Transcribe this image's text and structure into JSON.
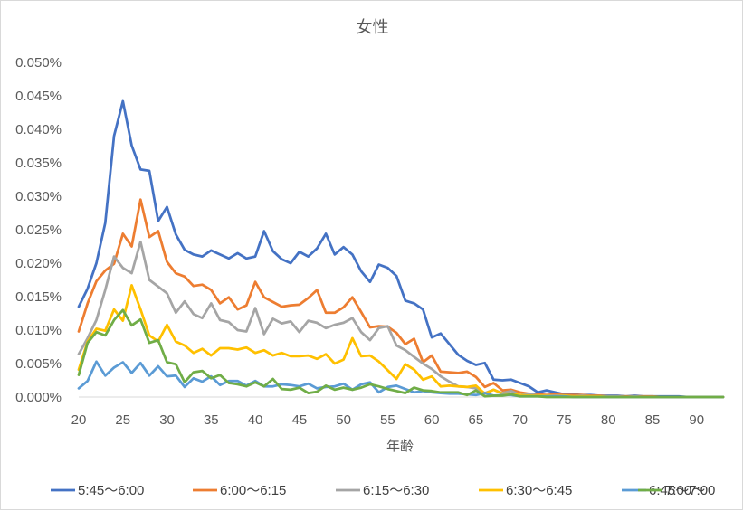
{
  "chart_data": {
    "type": "line",
    "title": "女性",
    "xlabel": "年齢",
    "ylabel": "",
    "xlim": [
      20,
      93
    ],
    "ylim": [
      0,
      0.0005
    ],
    "grid": false,
    "legend_position": "bottom",
    "x_ticks": [
      20,
      25,
      30,
      35,
      40,
      45,
      50,
      55,
      60,
      65,
      70,
      75,
      80,
      85,
      90
    ],
    "x_tick_labels": [
      "20",
      "25",
      "30",
      "35",
      "40",
      "45",
      "50",
      "55",
      "60",
      "65",
      "70",
      "75",
      "80",
      "85",
      "90"
    ],
    "y_ticks": [
      0,
      5e-05,
      0.0001,
      0.00015,
      0.0002,
      0.00025,
      0.0003,
      0.00035,
      0.0004,
      0.00045,
      0.0005
    ],
    "y_tick_labels": [
      "0.000%",
      "0.005%",
      "0.010%",
      "0.015%",
      "0.020%",
      "0.025%",
      "0.030%",
      "0.035%",
      "0.040%",
      "0.045%",
      "0.050%"
    ],
    "x": [
      20,
      21,
      22,
      23,
      24,
      25,
      26,
      27,
      28,
      29,
      30,
      31,
      32,
      33,
      34,
      35,
      36,
      37,
      38,
      39,
      40,
      41,
      42,
      43,
      44,
      45,
      46,
      47,
      48,
      49,
      50,
      51,
      52,
      53,
      54,
      55,
      56,
      57,
      58,
      59,
      60,
      61,
      62,
      63,
      64,
      65,
      66,
      67,
      68,
      69,
      70,
      71,
      72,
      73,
      74,
      75,
      76,
      77,
      78,
      79,
      80,
      81,
      82,
      83,
      84,
      85,
      86,
      87,
      88,
      89,
      90,
      91,
      92,
      93
    ],
    "series": [
      {
        "name": "5:45～6:00",
        "color": "#4472C4",
        "values": [
          0.000135,
          0.000162,
          0.0002,
          0.00026,
          0.00039,
          0.000442,
          0.000376,
          0.00034,
          0.000338,
          0.000263,
          0.000284,
          0.000243,
          0.00022,
          0.000213,
          0.00021,
          0.000219,
          0.000213,
          0.000207,
          0.000215,
          0.000207,
          0.00021,
          0.000248,
          0.000218,
          0.000206,
          0.0002,
          0.000217,
          0.00021,
          0.000222,
          0.000244,
          0.000213,
          0.000224,
          0.000213,
          0.000188,
          0.000172,
          0.000198,
          0.000193,
          0.000181,
          0.000144,
          0.00014,
          0.000131,
          8.9e-05,
          9.5e-05,
          7.9e-05,
          6.3e-05,
          5.4e-05,
          4.8e-05,
          5.1e-05,
          2.6e-05,
          2.5e-05,
          2.6e-05,
          2.1e-05,
          1.6e-05,
          7e-06,
          1e-05,
          7e-06,
          4e-06,
          4e-06,
          3e-06,
          3e-06,
          2e-06,
          2e-06,
          2e-06,
          1e-06,
          2e-06,
          1e-06,
          1e-06,
          1e-06,
          1e-06,
          1e-06,
          0.0,
          0.0,
          0.0,
          0.0,
          0.0
        ]
      },
      {
        "name": "6:00～6:15",
        "color": "#ED7D31",
        "values": [
          9.8e-05,
          0.00014,
          0.000173,
          0.000189,
          0.000199,
          0.000244,
          0.000225,
          0.000295,
          0.000239,
          0.000248,
          0.000202,
          0.000185,
          0.00018,
          0.000166,
          0.000168,
          0.00016,
          0.00014,
          0.000149,
          0.000131,
          0.000137,
          0.000172,
          0.000149,
          0.000142,
          0.000135,
          0.000137,
          0.000138,
          0.000148,
          0.00016,
          0.000126,
          0.000126,
          0.000134,
          0.000149,
          0.000127,
          0.000104,
          0.000106,
          0.000105,
          9.6e-05,
          7.9e-05,
          8.7e-05,
          5.2e-05,
          6.2e-05,
          3.8e-05,
          3.7e-05,
          3.6e-05,
          3.8e-05,
          3e-05,
          1.5e-05,
          2.1e-05,
          1e-05,
          1.1e-05,
          7e-06,
          5e-06,
          4e-06,
          3e-06,
          4e-06,
          3e-06,
          3e-06,
          3e-06,
          2e-06,
          2e-06,
          1e-06,
          1e-06,
          1e-06,
          1e-06,
          1e-06,
          1e-06,
          0.0,
          0.0,
          0.0,
          0.0,
          0.0,
          0.0,
          0.0,
          0.0
        ]
      },
      {
        "name": "6:15～6:30",
        "color": "#A5A5A5",
        "values": [
          6.4e-05,
          8.8e-05,
          0.000115,
          0.00016,
          0.00021,
          0.000193,
          0.000185,
          0.000232,
          0.000175,
          0.000165,
          0.000155,
          0.000126,
          0.000143,
          0.000124,
          0.000118,
          0.00014,
          0.000115,
          0.000112,
          0.0001,
          9.8e-05,
          0.000133,
          9.4e-05,
          0.000117,
          0.00011,
          0.000113,
          9.7e-05,
          0.000114,
          0.000111,
          0.000103,
          0.000108,
          0.000111,
          0.000118,
          9.7e-05,
          8.5e-05,
          0.000103,
          0.000106,
          7.7e-05,
          7e-05,
          6e-05,
          5e-05,
          4.2e-05,
          3.1e-05,
          2.3e-05,
          1.6e-05,
          1.5e-05,
          1.3e-05,
          6e-06,
          1.1e-05,
          6e-06,
          9e-06,
          3e-06,
          5e-06,
          2e-06,
          2e-06,
          2e-06,
          2e-06,
          1e-06,
          2e-06,
          1e-06,
          1e-06,
          1e-06,
          1e-06,
          0.0,
          1e-06,
          0.0,
          0.0,
          0.0,
          0.0,
          0.0,
          0.0,
          0.0,
          0.0,
          0.0,
          0.0
        ]
      },
      {
        "name": "6:30～6:45",
        "color": "#FFC000",
        "values": [
          4.1e-05,
          8.3e-05,
          0.000102,
          9.9e-05,
          0.000131,
          0.000114,
          0.000167,
          0.000131,
          9.2e-05,
          8.3e-05,
          0.000108,
          8.3e-05,
          7.7e-05,
          6.6e-05,
          7.2e-05,
          6.2e-05,
          7.3e-05,
          7.3e-05,
          7.1e-05,
          7.4e-05,
          6.6e-05,
          7e-05,
          6.2e-05,
          6.6e-05,
          6.1e-05,
          6.1e-05,
          6.2e-05,
          5.7e-05,
          6.4e-05,
          5e-05,
          5.6e-05,
          8.8e-05,
          6.1e-05,
          6.2e-05,
          5.3e-05,
          4e-05,
          2.7e-05,
          4.9e-05,
          4.1e-05,
          2.6e-05,
          3.1e-05,
          1.6e-05,
          1.7e-05,
          1.6e-05,
          1.5e-05,
          1.7e-05,
          5e-06,
          1.1e-05,
          5e-06,
          5e-06,
          3e-06,
          2e-06,
          2e-06,
          2e-06,
          1e-06,
          2e-06,
          1e-06,
          1e-06,
          1e-06,
          1e-06,
          0.0,
          0.0,
          0.0,
          0.0,
          0.0,
          0.0,
          0.0,
          0.0,
          0.0,
          0.0,
          0.0,
          0.0,
          0.0,
          0.0
        ]
      },
      {
        "name": "6:45～7:00",
        "color": "#5B9BD5",
        "values": [
          1.3e-05,
          2.4e-05,
          5.3e-05,
          3.2e-05,
          4.4e-05,
          5.2e-05,
          3.6e-05,
          5.1e-05,
          3.2e-05,
          4.6e-05,
          3.1e-05,
          3.2e-05,
          1.5e-05,
          2.8e-05,
          2.3e-05,
          3.1e-05,
          1.8e-05,
          2.4e-05,
          2.4e-05,
          1.7e-05,
          2.4e-05,
          1.6e-05,
          1.6e-05,
          1.9e-05,
          1.8e-05,
          1.6e-05,
          2e-05,
          1.3e-05,
          1.5e-05,
          1.6e-05,
          2e-05,
          1.1e-05,
          1.9e-05,
          2.2e-05,
          7e-06,
          1.5e-05,
          1.7e-05,
          1.2e-05,
          7e-06,
          9e-06,
          7e-06,
          6e-06,
          5e-06,
          5e-06,
          4e-06,
          3e-06,
          6e-06,
          2e-06,
          3e-06,
          3e-06,
          1e-06,
          1e-06,
          1e-06,
          1e-06,
          1e-06,
          1e-06,
          0.0,
          0.0,
          0.0,
          0.0,
          0.0,
          0.0,
          0.0,
          0.0,
          0.0,
          0.0,
          0.0,
          0.0,
          0.0,
          0.0,
          0.0,
          0.0,
          0.0,
          0.0
        ]
      },
      {
        "name": "7:00～",
        "color": "#70AD47",
        "values": [
          3.3e-05,
          8.1e-05,
          9.7e-05,
          9.2e-05,
          0.000115,
          0.00013,
          0.000107,
          0.000116,
          8.1e-05,
          8.5e-05,
          5.2e-05,
          4.9e-05,
          2.2e-05,
          3.7e-05,
          3.9e-05,
          2.8e-05,
          3.3e-05,
          2.1e-05,
          1.9e-05,
          1.6e-05,
          2.2e-05,
          1.6e-05,
          2.7e-05,
          1.2e-05,
          1.1e-05,
          1.4e-05,
          6e-06,
          8e-06,
          1.7e-05,
          1.1e-05,
          1.4e-05,
          1.1e-05,
          1.4e-05,
          1.9e-05,
          1.6e-05,
          1.2e-05,
          9e-06,
          6e-06,
          1.4e-05,
          1e-05,
          9e-06,
          7e-06,
          7e-06,
          7e-06,
          3e-06,
          1e-05,
          1e-06,
          2e-06,
          2e-06,
          4e-06,
          1e-06,
          1e-06,
          1e-06,
          0.0,
          0.0,
          0.0,
          0.0,
          0.0,
          0.0,
          0.0,
          0.0,
          0.0,
          0.0,
          0.0,
          0.0,
          0.0,
          0.0,
          0.0,
          0.0,
          0.0,
          0.0,
          0.0,
          0.0,
          0.0
        ]
      }
    ]
  }
}
